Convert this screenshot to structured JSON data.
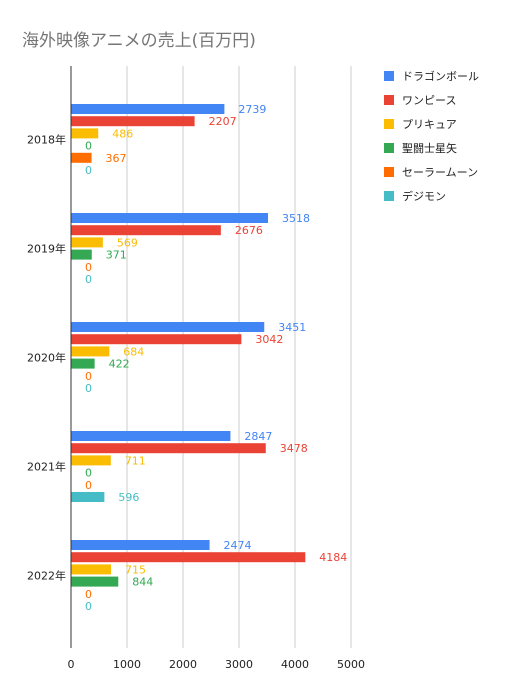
{
  "chart_data": {
    "type": "bar",
    "orientation": "horizontal",
    "title": "海外映像アニメの売上(百万円)",
    "categories": [
      "2018年",
      "2019年",
      "2020年",
      "2021年",
      "2022年"
    ],
    "series": [
      {
        "name": "ドラゴンボール",
        "color": "#4285f4",
        "values": [
          2739,
          3518,
          3451,
          2847,
          2474
        ]
      },
      {
        "name": "ワンピース",
        "color": "#ea4335",
        "values": [
          2207,
          2676,
          3042,
          3478,
          4184
        ]
      },
      {
        "name": "プリキュア",
        "color": "#fbbc04",
        "values": [
          486,
          569,
          684,
          711,
          715
        ]
      },
      {
        "name": "聖闘士星矢",
        "color": "#34a853",
        "values": [
          0,
          371,
          422,
          0,
          844
        ]
      },
      {
        "name": "セーラームーン",
        "color": "#ff6d01",
        "values": [
          367,
          0,
          0,
          0,
          0
        ]
      },
      {
        "name": "デジモン",
        "color": "#46bdc6",
        "values": [
          0,
          0,
          0,
          596,
          0
        ]
      }
    ],
    "xlim": [
      0,
      5000
    ],
    "xticks": [
      "0",
      "1000",
      "2000",
      "3000",
      "4000",
      "5000"
    ],
    "grid": true,
    "legend_position": "right",
    "data_labels": true
  }
}
